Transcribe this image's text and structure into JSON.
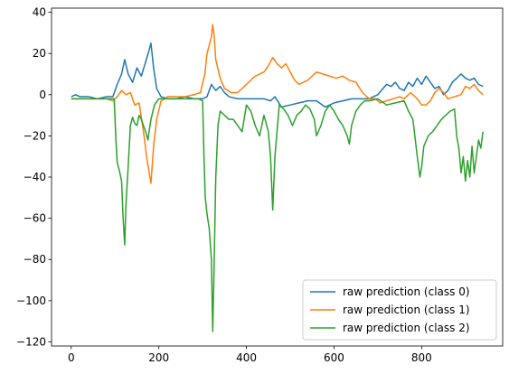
{
  "chart_data": {
    "type": "line",
    "title": "",
    "xlabel": "",
    "ylabel": "",
    "xlim": [
      -45,
      985
    ],
    "ylim": [
      -122,
      42
    ],
    "grid": false,
    "legend_position": "lower-right",
    "x_ticks": [
      0,
      200,
      400,
      600,
      800
    ],
    "y_ticks": [
      40,
      20,
      0,
      -20,
      -40,
      -60,
      -80,
      -100,
      -120
    ],
    "x_tick_labels": [
      "0",
      "200",
      "400",
      "600",
      "800"
    ],
    "y_tick_labels": [
      "40",
      "20",
      "0",
      "−20",
      "−40",
      "−60",
      "−80",
      "−100",
      "−120"
    ],
    "series": [
      {
        "name": "raw prediction (class 0)",
        "color": "#1f77b4",
        "points": [
          [
            0,
            -1
          ],
          [
            10,
            0
          ],
          [
            20,
            -1
          ],
          [
            40,
            -1
          ],
          [
            60,
            -2
          ],
          [
            80,
            -1
          ],
          [
            95,
            -1
          ],
          [
            105,
            5
          ],
          [
            115,
            10
          ],
          [
            122,
            17
          ],
          [
            130,
            10
          ],
          [
            140,
            6
          ],
          [
            150,
            13
          ],
          [
            160,
            9
          ],
          [
            170,
            16
          ],
          [
            177,
            21
          ],
          [
            182,
            25
          ],
          [
            188,
            13
          ],
          [
            195,
            3
          ],
          [
            205,
            -1
          ],
          [
            220,
            -2
          ],
          [
            240,
            -2
          ],
          [
            260,
            -1
          ],
          [
            280,
            -2
          ],
          [
            300,
            -2
          ],
          [
            310,
            -1
          ],
          [
            320,
            5
          ],
          [
            330,
            2
          ],
          [
            340,
            4
          ],
          [
            350,
            1
          ],
          [
            360,
            -1
          ],
          [
            380,
            -2
          ],
          [
            400,
            -2
          ],
          [
            420,
            -2
          ],
          [
            440,
            -2
          ],
          [
            455,
            -3
          ],
          [
            465,
            -1
          ],
          [
            480,
            -6
          ],
          [
            500,
            -5
          ],
          [
            520,
            -4
          ],
          [
            540,
            -3
          ],
          [
            560,
            -3
          ],
          [
            580,
            -6
          ],
          [
            600,
            -4
          ],
          [
            620,
            -3
          ],
          [
            640,
            -2
          ],
          [
            660,
            -2
          ],
          [
            680,
            -2
          ],
          [
            700,
            0
          ],
          [
            720,
            5
          ],
          [
            730,
            4
          ],
          [
            740,
            6
          ],
          [
            750,
            3
          ],
          [
            760,
            2
          ],
          [
            770,
            6
          ],
          [
            780,
            4
          ],
          [
            790,
            8
          ],
          [
            800,
            5
          ],
          [
            810,
            9
          ],
          [
            820,
            6
          ],
          [
            830,
            3
          ],
          [
            840,
            4
          ],
          [
            850,
            0
          ],
          [
            860,
            2
          ],
          [
            870,
            6
          ],
          [
            880,
            8
          ],
          [
            890,
            10
          ],
          [
            900,
            8
          ],
          [
            910,
            7
          ],
          [
            920,
            8
          ],
          [
            930,
            5
          ],
          [
            940,
            4
          ]
        ]
      },
      {
        "name": "raw prediction (class 1)",
        "color": "#ff7f0e",
        "points": [
          [
            0,
            -2
          ],
          [
            20,
            -2
          ],
          [
            40,
            -2
          ],
          [
            60,
            -2
          ],
          [
            80,
            -2
          ],
          [
            95,
            -3
          ],
          [
            105,
            -1
          ],
          [
            115,
            2
          ],
          [
            125,
            0
          ],
          [
            135,
            1
          ],
          [
            145,
            -5
          ],
          [
            155,
            -4
          ],
          [
            165,
            -18
          ],
          [
            172,
            -30
          ],
          [
            178,
            -38
          ],
          [
            182,
            -43
          ],
          [
            188,
            -25
          ],
          [
            195,
            -12
          ],
          [
            205,
            -3
          ],
          [
            220,
            -1
          ],
          [
            240,
            -1
          ],
          [
            260,
            -1
          ],
          [
            280,
            0
          ],
          [
            295,
            1
          ],
          [
            305,
            10
          ],
          [
            310,
            20
          ],
          [
            315,
            24
          ],
          [
            320,
            28
          ],
          [
            323,
            34
          ],
          [
            326,
            29
          ],
          [
            330,
            17
          ],
          [
            340,
            8
          ],
          [
            350,
            3
          ],
          [
            365,
            1
          ],
          [
            380,
            1
          ],
          [
            400,
            5
          ],
          [
            420,
            9
          ],
          [
            440,
            11
          ],
          [
            450,
            14
          ],
          [
            460,
            18
          ],
          [
            470,
            15
          ],
          [
            480,
            13
          ],
          [
            490,
            15
          ],
          [
            500,
            11
          ],
          [
            510,
            7
          ],
          [
            520,
            5
          ],
          [
            530,
            6
          ],
          [
            540,
            7
          ],
          [
            550,
            9
          ],
          [
            560,
            11
          ],
          [
            575,
            10
          ],
          [
            590,
            9
          ],
          [
            605,
            8
          ],
          [
            620,
            9
          ],
          [
            635,
            7
          ],
          [
            650,
            6
          ],
          [
            665,
            1
          ],
          [
            680,
            -2
          ],
          [
            695,
            -2
          ],
          [
            705,
            -4
          ],
          [
            720,
            -3
          ],
          [
            735,
            -2
          ],
          [
            750,
            -1
          ],
          [
            760,
            -2
          ],
          [
            775,
            1
          ],
          [
            790,
            -2
          ],
          [
            800,
            -5
          ],
          [
            810,
            -5
          ],
          [
            820,
            -3
          ],
          [
            830,
            1
          ],
          [
            840,
            3
          ],
          [
            850,
            1
          ],
          [
            860,
            -2
          ],
          [
            875,
            -1
          ],
          [
            890,
            0
          ],
          [
            900,
            4
          ],
          [
            910,
            3
          ],
          [
            920,
            5
          ],
          [
            930,
            2
          ],
          [
            940,
            0
          ]
        ]
      },
      {
        "name": "raw prediction (class 2)",
        "color": "#2ca02c",
        "points": [
          [
            0,
            -2
          ],
          [
            20,
            -2
          ],
          [
            40,
            -2
          ],
          [
            60,
            -2
          ],
          [
            80,
            -2
          ],
          [
            98,
            -2
          ],
          [
            102,
            -22
          ],
          [
            105,
            -33
          ],
          [
            110,
            -37
          ],
          [
            115,
            -42
          ],
          [
            118,
            -58
          ],
          [
            122,
            -73
          ],
          [
            125,
            -53
          ],
          [
            130,
            -35
          ],
          [
            135,
            -15
          ],
          [
            140,
            -11
          ],
          [
            145,
            -14
          ],
          [
            150,
            -15
          ],
          [
            155,
            -10
          ],
          [
            160,
            -12
          ],
          [
            170,
            -18
          ],
          [
            175,
            -22
          ],
          [
            182,
            -12
          ],
          [
            190,
            -5
          ],
          [
            200,
            -2
          ],
          [
            210,
            -2
          ],
          [
            230,
            -2
          ],
          [
            250,
            -2
          ],
          [
            270,
            -2
          ],
          [
            290,
            -2
          ],
          [
            300,
            -3
          ],
          [
            303,
            -30
          ],
          [
            306,
            -50
          ],
          [
            310,
            -58
          ],
          [
            315,
            -65
          ],
          [
            320,
            -80
          ],
          [
            323,
            -115
          ],
          [
            326,
            -85
          ],
          [
            330,
            -40
          ],
          [
            335,
            -15
          ],
          [
            340,
            -8
          ],
          [
            350,
            -10
          ],
          [
            360,
            -12
          ],
          [
            370,
            -12
          ],
          [
            380,
            -15
          ],
          [
            390,
            -18
          ],
          [
            400,
            -5
          ],
          [
            410,
            -8
          ],
          [
            420,
            -15
          ],
          [
            430,
            -20
          ],
          [
            440,
            -10
          ],
          [
            450,
            -18
          ],
          [
            455,
            -30
          ],
          [
            460,
            -56
          ],
          [
            465,
            -30
          ],
          [
            475,
            -5
          ],
          [
            485,
            -7
          ],
          [
            495,
            -10
          ],
          [
            505,
            -15
          ],
          [
            515,
            -10
          ],
          [
            525,
            -8
          ],
          [
            535,
            -5
          ],
          [
            545,
            -7
          ],
          [
            555,
            -12
          ],
          [
            560,
            -20
          ],
          [
            570,
            -15
          ],
          [
            580,
            -8
          ],
          [
            590,
            -5
          ],
          [
            600,
            -8
          ],
          [
            610,
            -12
          ],
          [
            620,
            -15
          ],
          [
            630,
            -20
          ],
          [
            635,
            -24
          ],
          [
            640,
            -15
          ],
          [
            650,
            -8
          ],
          [
            660,
            -5
          ],
          [
            670,
            -3
          ],
          [
            680,
            -3
          ],
          [
            700,
            -2
          ],
          [
            720,
            -5
          ],
          [
            740,
            -4
          ],
          [
            760,
            -3
          ],
          [
            770,
            -8
          ],
          [
            780,
            -12
          ],
          [
            790,
            -30
          ],
          [
            796,
            -40
          ],
          [
            800,
            -35
          ],
          [
            805,
            -25
          ],
          [
            815,
            -20
          ],
          [
            825,
            -18
          ],
          [
            835,
            -15
          ],
          [
            845,
            -12
          ],
          [
            855,
            -10
          ],
          [
            865,
            -8
          ],
          [
            875,
            -7
          ],
          [
            880,
            -20
          ],
          [
            885,
            -26
          ],
          [
            890,
            -38
          ],
          [
            895,
            -30
          ],
          [
            900,
            -42
          ],
          [
            905,
            -32
          ],
          [
            910,
            -40
          ],
          [
            915,
            -25
          ],
          [
            920,
            -38
          ],
          [
            925,
            -30
          ],
          [
            930,
            -22
          ],
          [
            935,
            -26
          ],
          [
            940,
            -18
          ]
        ]
      }
    ]
  }
}
